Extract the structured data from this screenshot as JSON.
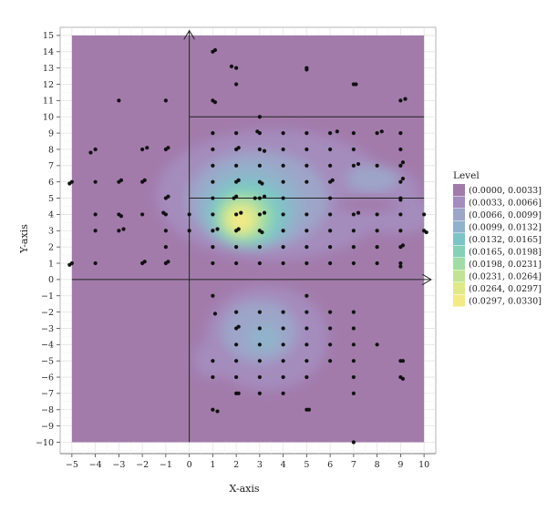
{
  "chart_data": {
    "type": "scatter",
    "subtype": "density-contour",
    "title": "",
    "xlabel": "X-axis",
    "ylabel": "Y-axis",
    "xlim": [
      -5.5,
      10.5
    ],
    "ylim": [
      -10.7,
      15.5
    ],
    "density_region": {
      "x": [
        -5,
        10
      ],
      "y": [
        -10,
        15
      ]
    },
    "x_ticks": [
      -5,
      -4,
      -3,
      -2,
      -1,
      0,
      1,
      2,
      3,
      4,
      5,
      6,
      7,
      8,
      9,
      10
    ],
    "x_tick_labels": [
      "−5",
      "−4",
      "−3",
      "−2",
      "−1",
      "0",
      "1",
      "2",
      "3",
      "4",
      "5",
      "6",
      "7",
      "8",
      "9",
      "10"
    ],
    "y_ticks": [
      -10,
      -9,
      -8,
      -7,
      -6,
      -5,
      -4,
      -3,
      -2,
      -1,
      0,
      1,
      2,
      3,
      4,
      5,
      6,
      7,
      8,
      9,
      10,
      11,
      12,
      13,
      14,
      15
    ],
    "y_tick_labels": [
      "−10",
      "−9",
      "−8",
      "−7",
      "−6",
      "−5",
      "−4",
      "−3",
      "−2",
      "−1",
      "0",
      "1",
      "2",
      "3",
      "4",
      "5",
      "6",
      "7",
      "8",
      "9",
      "10",
      "11",
      "12",
      "13",
      "14",
      "15"
    ],
    "grid": true,
    "reference_lines": [
      {
        "orientation": "vertical",
        "x": 0,
        "from": -10,
        "to": 15.3,
        "arrow": true
      },
      {
        "orientation": "horizontal",
        "y": 0,
        "from": -5,
        "to": 10.3,
        "arrow": true
      },
      {
        "orientation": "horizontal",
        "y": 10,
        "from": 0,
        "to": 10
      },
      {
        "orientation": "horizontal",
        "y": 5,
        "from": 0,
        "to": 10
      }
    ],
    "legend": {
      "title": "Level",
      "position": "right",
      "entries": [
        {
          "label": "(0.0000, 0.0033]",
          "color": "#a27bab"
        },
        {
          "label": "(0.0033, 0.0066]",
          "color": "#a48cbd"
        },
        {
          "label": "(0.0066, 0.0099]",
          "color": "#9da5c8"
        },
        {
          "label": "(0.0099, 0.0132]",
          "color": "#91b2cb"
        },
        {
          "label": "(0.0132, 0.0165]",
          "color": "#7dc4c7"
        },
        {
          "label": "(0.0165, 0.0198]",
          "color": "#86d0b8"
        },
        {
          "label": "(0.0198, 0.0231]",
          "color": "#a2dba6"
        },
        {
          "label": "(0.0231, 0.0264]",
          "color": "#c2e395"
        },
        {
          "label": "(0.0264, 0.0297]",
          "color": "#dfe989"
        },
        {
          "label": "(0.0297, 0.0330]",
          "color": "#f3ea86"
        }
      ]
    },
    "point_color": "#111111",
    "points": [
      [
        1,
        14
      ],
      [
        1.1,
        14.1
      ],
      [
        1.8,
        13.1
      ],
      [
        2,
        13
      ],
      [
        5,
        13
      ],
      [
        5,
        12.9
      ],
      [
        2,
        12
      ],
      [
        7,
        12
      ],
      [
        7.1,
        12
      ],
      [
        -3,
        11
      ],
      [
        -1,
        11
      ],
      [
        1,
        11
      ],
      [
        1.1,
        10.9
      ],
      [
        9,
        11
      ],
      [
        9.2,
        11.1
      ],
      [
        3,
        10
      ],
      [
        1,
        9
      ],
      [
        2,
        9
      ],
      [
        3,
        9
      ],
      [
        4,
        9
      ],
      [
        5,
        9
      ],
      [
        6,
        9
      ],
      [
        6.3,
        9.1
      ],
      [
        7,
        9
      ],
      [
        8,
        9
      ],
      [
        8.2,
        9.1
      ],
      [
        9,
        9
      ],
      [
        2.9,
        9.1
      ],
      [
        -4,
        8
      ],
      [
        -4.2,
        7.8
      ],
      [
        -2,
        8
      ],
      [
        -1.8,
        8.1
      ],
      [
        -1,
        8
      ],
      [
        -0.9,
        8.1
      ],
      [
        1,
        8
      ],
      [
        2,
        8
      ],
      [
        2.1,
        8.1
      ],
      [
        3,
        8
      ],
      [
        3.2,
        7.9
      ],
      [
        4,
        8
      ],
      [
        5,
        8
      ],
      [
        6,
        8
      ],
      [
        7,
        8
      ],
      [
        9,
        8
      ],
      [
        1,
        7
      ],
      [
        2,
        7
      ],
      [
        3,
        7
      ],
      [
        4,
        7
      ],
      [
        5,
        7
      ],
      [
        6,
        7
      ],
      [
        7,
        7
      ],
      [
        7.2,
        7.1
      ],
      [
        8,
        7
      ],
      [
        9,
        7
      ],
      [
        9.1,
        7.2
      ],
      [
        -5,
        6
      ],
      [
        -5.1,
        5.9
      ],
      [
        -4,
        6
      ],
      [
        -3,
        6
      ],
      [
        -2.9,
        6.1
      ],
      [
        -2,
        6
      ],
      [
        -1.9,
        6.1
      ],
      [
        1,
        6
      ],
      [
        2,
        6
      ],
      [
        2.1,
        6.1
      ],
      [
        3,
        6
      ],
      [
        3.1,
        5.9
      ],
      [
        4,
        6
      ],
      [
        5,
        6
      ],
      [
        6,
        6
      ],
      [
        6.1,
        6.1
      ],
      [
        9,
        6
      ],
      [
        9.1,
        6.2
      ],
      [
        -1,
        5
      ],
      [
        -0.9,
        5.1
      ],
      [
        1,
        5
      ],
      [
        1.9,
        5
      ],
      [
        2,
        5.1
      ],
      [
        2.8,
        5
      ],
      [
        3,
        5
      ],
      [
        3.2,
        5.1
      ],
      [
        4,
        5
      ],
      [
        6,
        5
      ],
      [
        9,
        5
      ],
      [
        9,
        4.9
      ],
      [
        -4,
        4
      ],
      [
        -3,
        4
      ],
      [
        -2.9,
        3.9
      ],
      [
        -2,
        4
      ],
      [
        -1,
        4
      ],
      [
        -1.1,
        4.1
      ],
      [
        0,
        4
      ],
      [
        1,
        4
      ],
      [
        2,
        4
      ],
      [
        2.2,
        4.1
      ],
      [
        3,
        4
      ],
      [
        3.2,
        4.1
      ],
      [
        4,
        4
      ],
      [
        5,
        4
      ],
      [
        6,
        4
      ],
      [
        7,
        4
      ],
      [
        7.2,
        4.1
      ],
      [
        8,
        4
      ],
      [
        9,
        4
      ],
      [
        10,
        4
      ],
      [
        -4,
        3
      ],
      [
        -3,
        3
      ],
      [
        -2.8,
        3.1
      ],
      [
        -1,
        3
      ],
      [
        0,
        3
      ],
      [
        1,
        3
      ],
      [
        1.2,
        3.1
      ],
      [
        2,
        3
      ],
      [
        2.1,
        3.1
      ],
      [
        3,
        3
      ],
      [
        3.1,
        2.9
      ],
      [
        4,
        3
      ],
      [
        5,
        3
      ],
      [
        6,
        3
      ],
      [
        7,
        3
      ],
      [
        8,
        3
      ],
      [
        9,
        3
      ],
      [
        10,
        3
      ],
      [
        10.1,
        2.9
      ],
      [
        -1,
        2
      ],
      [
        1,
        2
      ],
      [
        2,
        2
      ],
      [
        3,
        2
      ],
      [
        4,
        2
      ],
      [
        5,
        2
      ],
      [
        6,
        2
      ],
      [
        7,
        2
      ],
      [
        8,
        2
      ],
      [
        9,
        2
      ],
      [
        9.1,
        2.1
      ],
      [
        -5,
        1
      ],
      [
        -5.1,
        0.9
      ],
      [
        -4,
        1
      ],
      [
        -2,
        1
      ],
      [
        -1.9,
        1.1
      ],
      [
        -1,
        1
      ],
      [
        -0.9,
        1.1
      ],
      [
        1,
        1
      ],
      [
        2,
        1
      ],
      [
        3,
        1
      ],
      [
        4,
        1
      ],
      [
        5,
        1
      ],
      [
        6,
        1
      ],
      [
        7,
        1
      ],
      [
        8,
        1
      ],
      [
        9,
        1
      ],
      [
        9,
        0.8
      ],
      [
        1,
        -1
      ],
      [
        5,
        -1
      ],
      [
        2,
        -2
      ],
      [
        3,
        -2
      ],
      [
        4,
        -2
      ],
      [
        5,
        -2
      ],
      [
        6,
        -2
      ],
      [
        7,
        -2
      ],
      [
        1.1,
        -2.1
      ],
      [
        2,
        -3
      ],
      [
        2.1,
        -2.9
      ],
      [
        3,
        -3
      ],
      [
        4,
        -3
      ],
      [
        5,
        -3
      ],
      [
        6,
        -3
      ],
      [
        7,
        -3
      ],
      [
        2,
        -4
      ],
      [
        3,
        -4
      ],
      [
        4,
        -4
      ],
      [
        5,
        -4
      ],
      [
        6,
        -4
      ],
      [
        7,
        -4
      ],
      [
        8,
        -4
      ],
      [
        1,
        -5
      ],
      [
        2,
        -5
      ],
      [
        3,
        -5
      ],
      [
        4,
        -5
      ],
      [
        5,
        -5
      ],
      [
        6,
        -5
      ],
      [
        7,
        -5
      ],
      [
        9,
        -5
      ],
      [
        9.1,
        -5
      ],
      [
        1,
        -6
      ],
      [
        2,
        -6
      ],
      [
        3,
        -6
      ],
      [
        4,
        -6
      ],
      [
        5,
        -6
      ],
      [
        7,
        -6
      ],
      [
        9,
        -6
      ],
      [
        9.1,
        -6.1
      ],
      [
        2,
        -7
      ],
      [
        2.1,
        -7
      ],
      [
        3,
        -7
      ],
      [
        4,
        -7
      ],
      [
        7,
        -7
      ],
      [
        1,
        -8
      ],
      [
        1.2,
        -8.1
      ],
      [
        5,
        -8
      ],
      [
        5.1,
        -8
      ],
      [
        7,
        -10
      ]
    ]
  }
}
